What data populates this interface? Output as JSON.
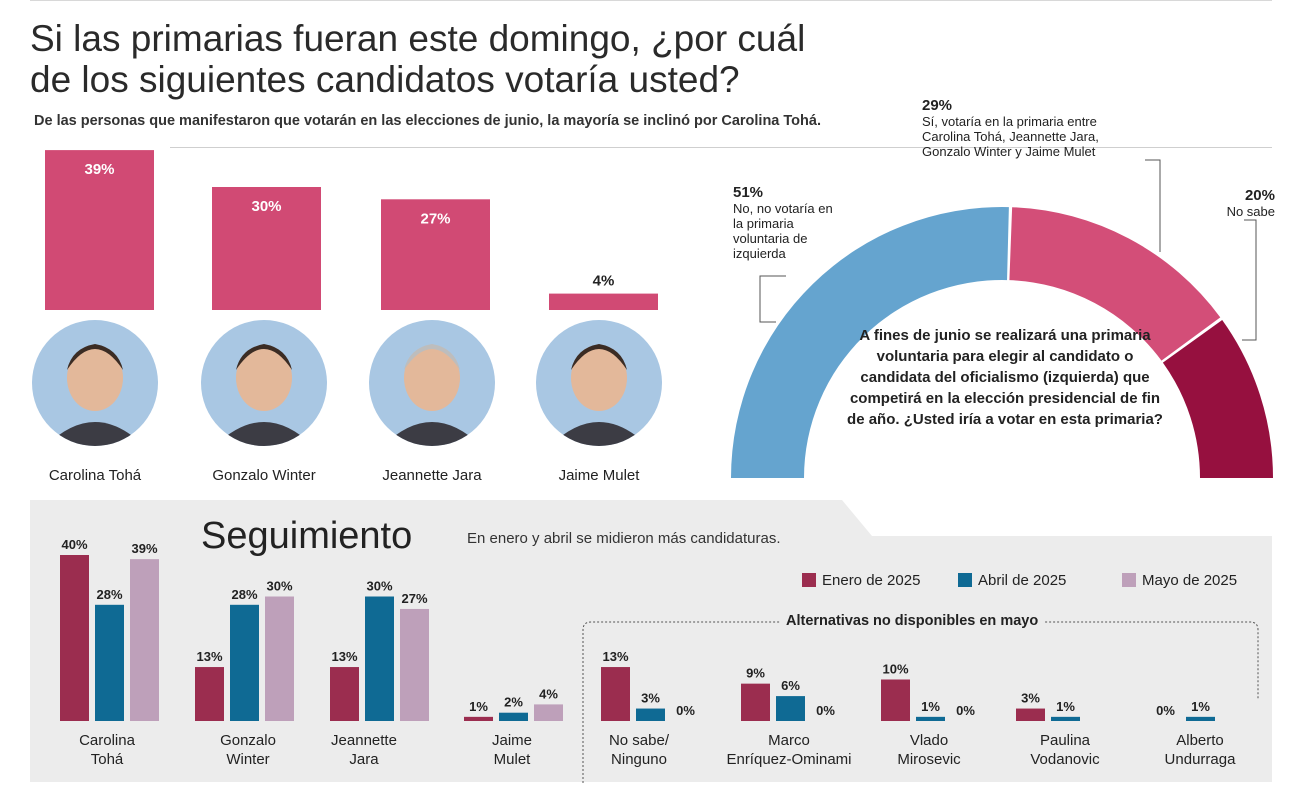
{
  "title": "Si las primarias fueran este domingo, ¿por cuál de los siguientes candidatos votaría usted?",
  "subtitle": "De las personas que manifestaron que votarán en las elecciones de junio, la mayoría se inclinó por Carolina Tohá.",
  "colors": {
    "pink": "#d14a74",
    "enero": "#9b2d4f",
    "abril": "#0f6a94",
    "mayo": "#bea0ba",
    "blue_arc": "#65a4cf",
    "pink_arc": "#d34e78",
    "dark_arc": "#96103f",
    "panel": "#ececec"
  },
  "photos": [
    {
      "name": "Carolina Tohá",
      "icon": "portrait-carolina-toha"
    },
    {
      "name": "Gonzalo Winter",
      "icon": "portrait-gonzalo-winter"
    },
    {
      "name": "Jeannette Jara",
      "icon": "portrait-jeannette-jara"
    },
    {
      "name": "Jaime Mulet",
      "icon": "portrait-jaime-mulet"
    }
  ],
  "pie_question": "A fines de junio se realizará una primaria voluntaria para elegir al candidato o candidata del oficialismo (izquierda) que competirá en la elección presidencial de fin de año. ¿Usted iría a votar en esta primaria?",
  "seguimiento": {
    "title": "Seguimiento",
    "subtitle": "En enero y abril se midieron más candidaturas.",
    "legend": [
      "Enero de 2025",
      "Abril de 2025",
      "Mayo de 2025"
    ],
    "alt_label": "Alternativas no disponibles en mayo"
  },
  "chart_data": [
    {
      "type": "bar",
      "categories": [
        "Carolina Tohá",
        "Gonzalo Winter",
        "Jeannette Jara",
        "Jaime Mulet"
      ],
      "values": [
        39,
        30,
        27,
        4
      ],
      "labels": [
        "39%",
        "30%",
        "27%",
        "4%"
      ]
    },
    {
      "type": "pie",
      "shape": "semicircle donut",
      "slices": [
        {
          "pct": "51%",
          "value": 51,
          "label": "No, no votaría en la primaria voluntaria de izquierda"
        },
        {
          "pct": "29%",
          "value": 29,
          "label": "Sí, votaría en la primaria entre Carolina Tohá, Jeannette Jara, Gonzalo Winter y Jaime Mulet"
        },
        {
          "pct": "20%",
          "value": 20,
          "label": "No sabe"
        }
      ]
    },
    {
      "type": "bar",
      "series_names": [
        "Enero de 2025",
        "Abril de 2025",
        "Mayo de 2025"
      ],
      "groups": [
        {
          "label": [
            "Carolina",
            "Tohá"
          ],
          "values": [
            40,
            28,
            39
          ],
          "labels": [
            "40%",
            "28%",
            "39%"
          ]
        },
        {
          "label": [
            "Gonzalo",
            "Winter"
          ],
          "values": [
            13,
            28,
            30
          ],
          "labels": [
            "13%",
            "28%",
            "30%"
          ]
        },
        {
          "label": [
            "Jeannette",
            "Jara"
          ],
          "values": [
            13,
            30,
            27
          ],
          "labels": [
            "13%",
            "30%",
            "27%"
          ]
        },
        {
          "label": [
            "Jaime",
            "Mulet"
          ],
          "values": [
            1,
            2,
            4
          ],
          "labels": [
            "1%",
            "2%",
            "4%"
          ]
        },
        {
          "label": [
            "No sabe/",
            "Ninguno"
          ],
          "values": [
            13,
            3,
            0
          ],
          "labels": [
            "13%",
            "3%",
            "0%"
          ]
        },
        {
          "label": [
            "Marco",
            "Enríquez-Ominami"
          ],
          "values": [
            9,
            6,
            0
          ],
          "labels": [
            "9%",
            "6%",
            "0%"
          ]
        },
        {
          "label": [
            "Vlado",
            "Mirosevic"
          ],
          "values": [
            10,
            1,
            0
          ],
          "labels": [
            "10%",
            "1%",
            "0%"
          ]
        },
        {
          "label": [
            "Paulina",
            "Vodanovic"
          ],
          "values": [
            3,
            1,
            null
          ],
          "labels": [
            "3%",
            "1%",
            ""
          ]
        },
        {
          "label": [
            "Alberto",
            "Undurraga"
          ],
          "values": [
            0,
            1,
            null
          ],
          "labels": [
            "0%",
            "1%",
            ""
          ]
        }
      ]
    }
  ]
}
